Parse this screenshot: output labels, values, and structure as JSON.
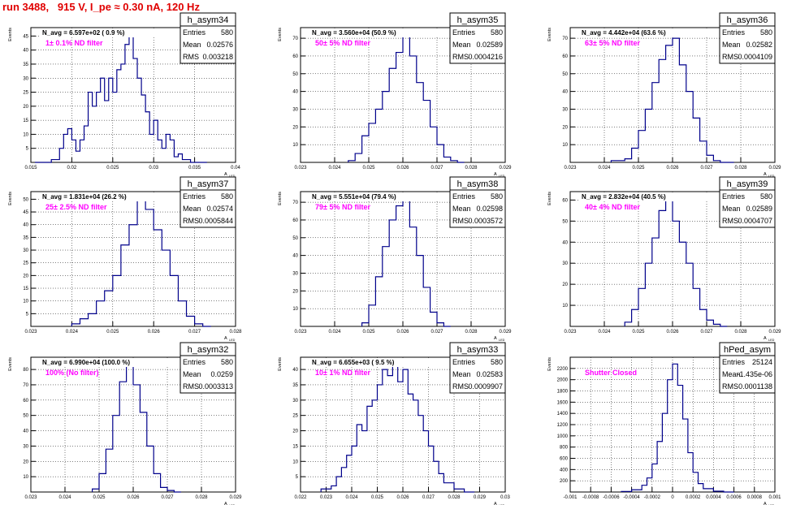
{
  "title": "run 3488,   915 V, I_pe ≈ 0.30 nA, 120 Hz",
  "axis_label_y": "Events",
  "axis_label_x": "A",
  "axis_label_x_sub": "LED",
  "stat_labels": {
    "entries": "Entries",
    "mean": "Mean",
    "rms": "RMS"
  },
  "chart_data": [
    {
      "type": "bar",
      "name": "h_asym34",
      "navg": "N_avg = 6.597e+02 ( 0.9 %)",
      "filter": "1± 0.1% ND filter",
      "entries": "580",
      "mean": "0.02576",
      "rms": "0.003218",
      "xlim": [
        0.015,
        0.04
      ],
      "xticks": [
        "0.015",
        "0.02",
        "0.025",
        "0.03",
        "0.035",
        "0.04"
      ],
      "yticks": [
        "5",
        "10",
        "15",
        "20",
        "25",
        "30",
        "35",
        "40",
        "45"
      ],
      "ylim": [
        0,
        48
      ],
      "bins": [
        [
          0.0155,
          0
        ],
        [
          0.0175,
          1
        ],
        [
          0.0185,
          5
        ],
        [
          0.019,
          10
        ],
        [
          0.0195,
          12
        ],
        [
          0.02,
          8
        ],
        [
          0.0205,
          4
        ],
        [
          0.021,
          8
        ],
        [
          0.0215,
          13
        ],
        [
          0.022,
          25
        ],
        [
          0.0225,
          20
        ],
        [
          0.023,
          25
        ],
        [
          0.0235,
          30
        ],
        [
          0.024,
          22
        ],
        [
          0.0245,
          30
        ],
        [
          0.025,
          25
        ],
        [
          0.0255,
          33
        ],
        [
          0.026,
          35
        ],
        [
          0.0265,
          42
        ],
        [
          0.027,
          47
        ],
        [
          0.0275,
          37
        ],
        [
          0.028,
          30
        ],
        [
          0.0285,
          24
        ],
        [
          0.029,
          18
        ],
        [
          0.0295,
          10
        ],
        [
          0.03,
          15
        ],
        [
          0.0305,
          8
        ],
        [
          0.031,
          5
        ],
        [
          0.0315,
          10
        ],
        [
          0.032,
          8
        ],
        [
          0.0325,
          2
        ],
        [
          0.033,
          3
        ],
        [
          0.0335,
          1
        ],
        [
          0.034,
          1
        ],
        [
          0.0345,
          0
        ]
      ]
    },
    {
      "type": "bar",
      "name": "h_asym35",
      "navg": "N_avg = 3.560e+04 (50.9 %)",
      "filter": "50± 5% ND filter",
      "entries": "580",
      "mean": "0.02589",
      "rms": "0.0004216",
      "xlim": [
        0.023,
        0.029
      ],
      "xticks": [
        "0.023",
        "0.024",
        "0.025",
        "0.026",
        "0.027",
        "0.028",
        "0.029"
      ],
      "yticks": [
        "10",
        "20",
        "30",
        "40",
        "50",
        "60",
        "70"
      ],
      "ylim": [
        0,
        76
      ],
      "bins": [
        [
          0.0244,
          1
        ],
        [
          0.0246,
          5
        ],
        [
          0.0248,
          15
        ],
        [
          0.025,
          22
        ],
        [
          0.0252,
          30
        ],
        [
          0.0254,
          40
        ],
        [
          0.0256,
          53
        ],
        [
          0.0258,
          62
        ],
        [
          0.026,
          72
        ],
        [
          0.0262,
          60
        ],
        [
          0.0264,
          45
        ],
        [
          0.0266,
          35
        ],
        [
          0.0268,
          20
        ],
        [
          0.027,
          10
        ],
        [
          0.0272,
          3
        ],
        [
          0.0274,
          1
        ],
        [
          0.0276,
          0
        ]
      ]
    },
    {
      "type": "bar",
      "name": "h_asym36",
      "navg": "N_avg = 4.442e+04 (63.6 %)",
      "filter": "63± 5% ND filter",
      "entries": "580",
      "mean": "0.02582",
      "rms": "0.0004109",
      "xlim": [
        0.023,
        0.029
      ],
      "xticks": [
        "0.023",
        "0.024",
        "0.025",
        "0.026",
        "0.027",
        "0.028",
        "0.029"
      ],
      "yticks": [
        "10",
        "20",
        "30",
        "40",
        "50",
        "60",
        "70"
      ],
      "ylim": [
        0,
        76
      ],
      "bins": [
        [
          0.0242,
          1
        ],
        [
          0.0246,
          2
        ],
        [
          0.0248,
          8
        ],
        [
          0.025,
          18
        ],
        [
          0.0252,
          30
        ],
        [
          0.0254,
          45
        ],
        [
          0.0256,
          58
        ],
        [
          0.0258,
          66
        ],
        [
          0.026,
          70
        ],
        [
          0.0262,
          55
        ],
        [
          0.0264,
          40
        ],
        [
          0.0266,
          25
        ],
        [
          0.0268,
          12
        ],
        [
          0.027,
          4
        ],
        [
          0.0272,
          1
        ],
        [
          0.0274,
          0
        ]
      ]
    },
    {
      "type": "bar",
      "name": "h_asym37",
      "navg": "N_avg = 1.831e+04 (26.2 %)",
      "filter": "25± 2.5% ND filter",
      "entries": "580",
      "mean": "0.02574",
      "rms": "0.0005844",
      "xlim": [
        0.023,
        0.028
      ],
      "xticks": [
        "0.023",
        "0.024",
        "0.025",
        "0.026",
        "0.027",
        "0.028"
      ],
      "yticks": [
        "5",
        "10",
        "15",
        "20",
        "25",
        "30",
        "35",
        "40",
        "45",
        "50"
      ],
      "ylim": [
        0,
        53
      ],
      "bins": [
        [
          0.024,
          1
        ],
        [
          0.0242,
          3
        ],
        [
          0.0244,
          5
        ],
        [
          0.0246,
          10
        ],
        [
          0.0248,
          14
        ],
        [
          0.025,
          20
        ],
        [
          0.0252,
          32
        ],
        [
          0.0254,
          40
        ],
        [
          0.0256,
          50
        ],
        [
          0.0258,
          46
        ],
        [
          0.026,
          38
        ],
        [
          0.0262,
          30
        ],
        [
          0.0264,
          20
        ],
        [
          0.0266,
          10
        ],
        [
          0.0268,
          4
        ],
        [
          0.027,
          1
        ],
        [
          0.0272,
          0
        ]
      ]
    },
    {
      "type": "bar",
      "name": "h_asym38",
      "navg": "N_avg = 5.551e+04 (79.4 %)",
      "filter": "79± 5% ND filter",
      "entries": "580",
      "mean": "0.02598",
      "rms": "0.0003572",
      "xlim": [
        0.023,
        0.029
      ],
      "xticks": [
        "0.023",
        "0.024",
        "0.025",
        "0.026",
        "0.027",
        "0.028",
        "0.029"
      ],
      "yticks": [
        "10",
        "20",
        "30",
        "40",
        "50",
        "60",
        "70"
      ],
      "ylim": [
        0,
        76
      ],
      "bins": [
        [
          0.0248,
          2
        ],
        [
          0.025,
          12
        ],
        [
          0.0252,
          28
        ],
        [
          0.0254,
          45
        ],
        [
          0.0256,
          60
        ],
        [
          0.0258,
          68
        ],
        [
          0.026,
          72
        ],
        [
          0.0262,
          56
        ],
        [
          0.0264,
          40
        ],
        [
          0.0266,
          22
        ],
        [
          0.0268,
          8
        ],
        [
          0.027,
          2
        ],
        [
          0.0272,
          0
        ]
      ]
    },
    {
      "type": "bar",
      "name": "h_asym39",
      "navg": "N_avg = 2.832e+04 (40.5 %)",
      "filter": "40± 4% ND filter",
      "entries": "580",
      "mean": "0.02589",
      "rms": "0.0004707",
      "xlim": [
        0.023,
        0.029
      ],
      "xticks": [
        "0.023",
        "0.024",
        "0.025",
        "0.026",
        "0.027",
        "0.028",
        "0.029"
      ],
      "yticks": [
        "10",
        "20",
        "30",
        "40",
        "50",
        "60"
      ],
      "ylim": [
        0,
        64
      ],
      "bins": [
        [
          0.0246,
          2
        ],
        [
          0.0248,
          8
        ],
        [
          0.025,
          18
        ],
        [
          0.0252,
          30
        ],
        [
          0.0254,
          42
        ],
        [
          0.0256,
          55
        ],
        [
          0.0258,
          62
        ],
        [
          0.026,
          50
        ],
        [
          0.0262,
          40
        ],
        [
          0.0264,
          30
        ],
        [
          0.0266,
          18
        ],
        [
          0.0268,
          8
        ],
        [
          0.027,
          3
        ],
        [
          0.0272,
          1
        ],
        [
          0.0274,
          0
        ]
      ]
    },
    {
      "type": "bar",
      "name": "h_asym32",
      "navg": "N_avg = 6.990e+04 (100.0 %)",
      "filter": "100% (No filter)",
      "entries": "580",
      "mean": "0.0259",
      "rms": "0.0003313",
      "xlim": [
        0.023,
        0.029
      ],
      "xticks": [
        "0.023",
        "0.024",
        "0.025",
        "0.026",
        "0.027",
        "0.028",
        "0.029"
      ],
      "yticks": [
        "10",
        "20",
        "30",
        "40",
        "50",
        "60",
        "70",
        "80"
      ],
      "ylim": [
        0,
        88
      ],
      "bins": [
        [
          0.0248,
          2
        ],
        [
          0.025,
          12
        ],
        [
          0.0252,
          28
        ],
        [
          0.0254,
          50
        ],
        [
          0.0256,
          72
        ],
        [
          0.0258,
          86
        ],
        [
          0.026,
          70
        ],
        [
          0.0262,
          52
        ],
        [
          0.0264,
          30
        ],
        [
          0.0266,
          12
        ],
        [
          0.0268,
          3
        ],
        [
          0.027,
          1
        ],
        [
          0.0272,
          0
        ]
      ]
    },
    {
      "type": "bar",
      "name": "h_asym33",
      "navg": "N_avg = 6.655e+03 ( 9.5 %)",
      "filter": "10± 1% ND filter",
      "entries": "580",
      "mean": "0.02583",
      "rms": "0.0009907",
      "xlim": [
        0.022,
        0.03
      ],
      "xticks": [
        "0.022",
        "0.023",
        "0.024",
        "0.025",
        "0.026",
        "0.027",
        "0.028",
        "0.029",
        "0.03"
      ],
      "yticks": [
        "5",
        "10",
        "15",
        "20",
        "25",
        "30",
        "35",
        "40"
      ],
      "ylim": [
        0,
        44
      ],
      "bins": [
        [
          0.0228,
          1
        ],
        [
          0.0232,
          2
        ],
        [
          0.0234,
          5
        ],
        [
          0.0236,
          8
        ],
        [
          0.0238,
          12
        ],
        [
          0.024,
          15
        ],
        [
          0.0242,
          22
        ],
        [
          0.0244,
          20
        ],
        [
          0.0246,
          28
        ],
        [
          0.0248,
          30
        ],
        [
          0.025,
          35
        ],
        [
          0.0252,
          40
        ],
        [
          0.0254,
          38
        ],
        [
          0.0256,
          42
        ],
        [
          0.0258,
          36
        ],
        [
          0.026,
          40
        ],
        [
          0.0262,
          32
        ],
        [
          0.0264,
          30
        ],
        [
          0.0266,
          25
        ],
        [
          0.0268,
          20
        ],
        [
          0.027,
          15
        ],
        [
          0.0272,
          10
        ],
        [
          0.0274,
          6
        ],
        [
          0.0276,
          3
        ],
        [
          0.028,
          1
        ],
        [
          0.0284,
          0
        ]
      ]
    },
    {
      "type": "bar",
      "name": "hPed_asym",
      "navg": "",
      "filter": "Shutter Closed",
      "entries": "25124",
      "mean": "-1.435e-06",
      "rms": "0.0001138",
      "xlim": [
        -0.001,
        0.001
      ],
      "xticks": [
        "-0.001",
        "-0.0008",
        "-0.0006",
        "-0.0004",
        "-0.0002",
        "0",
        "0.0002",
        "0.0004",
        "0.0006",
        "0.0008",
        "0.001"
      ],
      "yticks": [
        "200",
        "400",
        "600",
        "800",
        "1000",
        "1200",
        "1400",
        "1600",
        "1800",
        "2000",
        "2200"
      ],
      "ylim": [
        0,
        2400
      ],
      "bins": [
        [
          -0.0005,
          10
        ],
        [
          -0.0004,
          40
        ],
        [
          -0.0003,
          120
        ],
        [
          -0.00025,
          250
        ],
        [
          -0.0002,
          500
        ],
        [
          -0.00015,
          900
        ],
        [
          -0.0001,
          1400
        ],
        [
          -5e-05,
          2000
        ],
        [
          0,
          2280
        ],
        [
          5e-05,
          1900
        ],
        [
          0.0001,
          1300
        ],
        [
          0.00015,
          700
        ],
        [
          0.0002,
          350
        ],
        [
          0.00025,
          150
        ],
        [
          0.0003,
          60
        ],
        [
          0.0004,
          15
        ],
        [
          0.0005,
          0
        ]
      ]
    }
  ]
}
